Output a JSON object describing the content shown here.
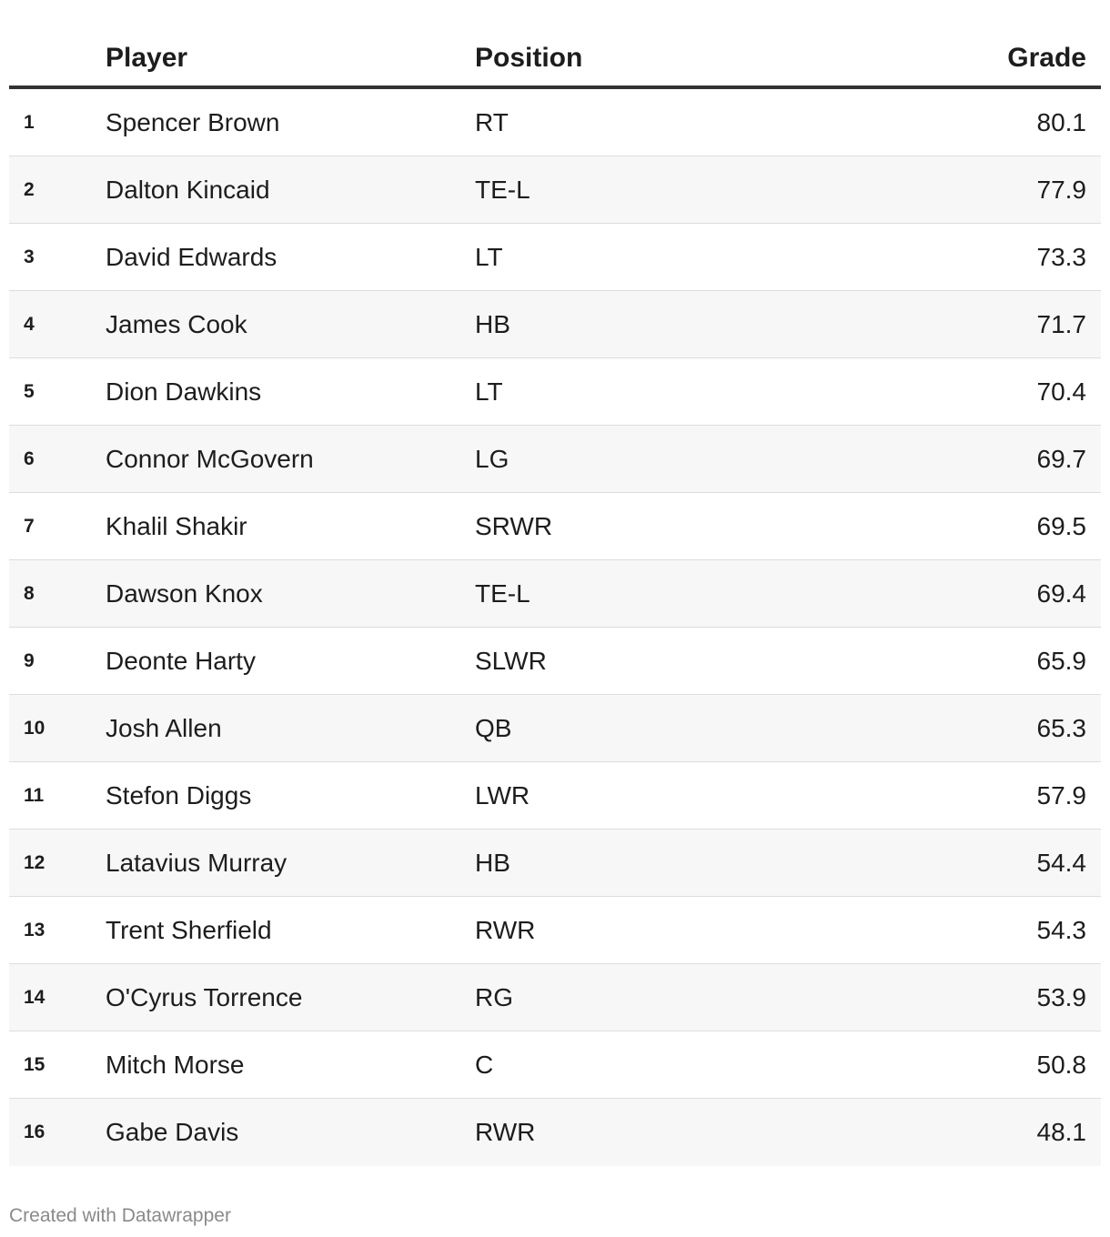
{
  "chart_data": {
    "type": "table",
    "columns": [
      "",
      "Player",
      "Position",
      "Grade"
    ],
    "rows": [
      {
        "rank": "1",
        "player": "Spencer Brown",
        "position": "RT",
        "grade": "80.1"
      },
      {
        "rank": "2",
        "player": "Dalton Kincaid",
        "position": "TE-L",
        "grade": "77.9"
      },
      {
        "rank": "3",
        "player": "David Edwards",
        "position": "LT",
        "grade": "73.3"
      },
      {
        "rank": "4",
        "player": "James Cook",
        "position": "HB",
        "grade": "71.7"
      },
      {
        "rank": "5",
        "player": "Dion Dawkins",
        "position": "LT",
        "grade": "70.4"
      },
      {
        "rank": "6",
        "player": "Connor McGovern",
        "position": "LG",
        "grade": "69.7"
      },
      {
        "rank": "7",
        "player": "Khalil Shakir",
        "position": "SRWR",
        "grade": "69.5"
      },
      {
        "rank": "8",
        "player": "Dawson Knox",
        "position": "TE-L",
        "grade": "69.4"
      },
      {
        "rank": "9",
        "player": "Deonte Harty",
        "position": "SLWR",
        "grade": "65.9"
      },
      {
        "rank": "10",
        "player": "Josh Allen",
        "position": "QB",
        "grade": "65.3"
      },
      {
        "rank": "11",
        "player": "Stefon Diggs",
        "position": "LWR",
        "grade": "57.9"
      },
      {
        "rank": "12",
        "player": "Latavius Murray",
        "position": "HB",
        "grade": "54.4"
      },
      {
        "rank": "13",
        "player": "Trent Sherfield",
        "position": "RWR",
        "grade": "54.3"
      },
      {
        "rank": "14",
        "player": "O'Cyrus Torrence",
        "position": "RG",
        "grade": "53.9"
      },
      {
        "rank": "15",
        "player": "Mitch Morse",
        "position": "C",
        "grade": "50.8"
      },
      {
        "rank": "16",
        "player": "Gabe Davis",
        "position": "RWR",
        "grade": "48.1"
      }
    ]
  },
  "header": {
    "player": "Player",
    "position": "Position",
    "grade": "Grade"
  },
  "footer": {
    "credit": "Created with Datawrapper"
  },
  "colors": {
    "text": "#1d1d1d",
    "header_rule": "#333333",
    "alt_row": "#f7f7f7",
    "row_divider": "#dddddd",
    "footer_text": "#8a8a8a"
  }
}
